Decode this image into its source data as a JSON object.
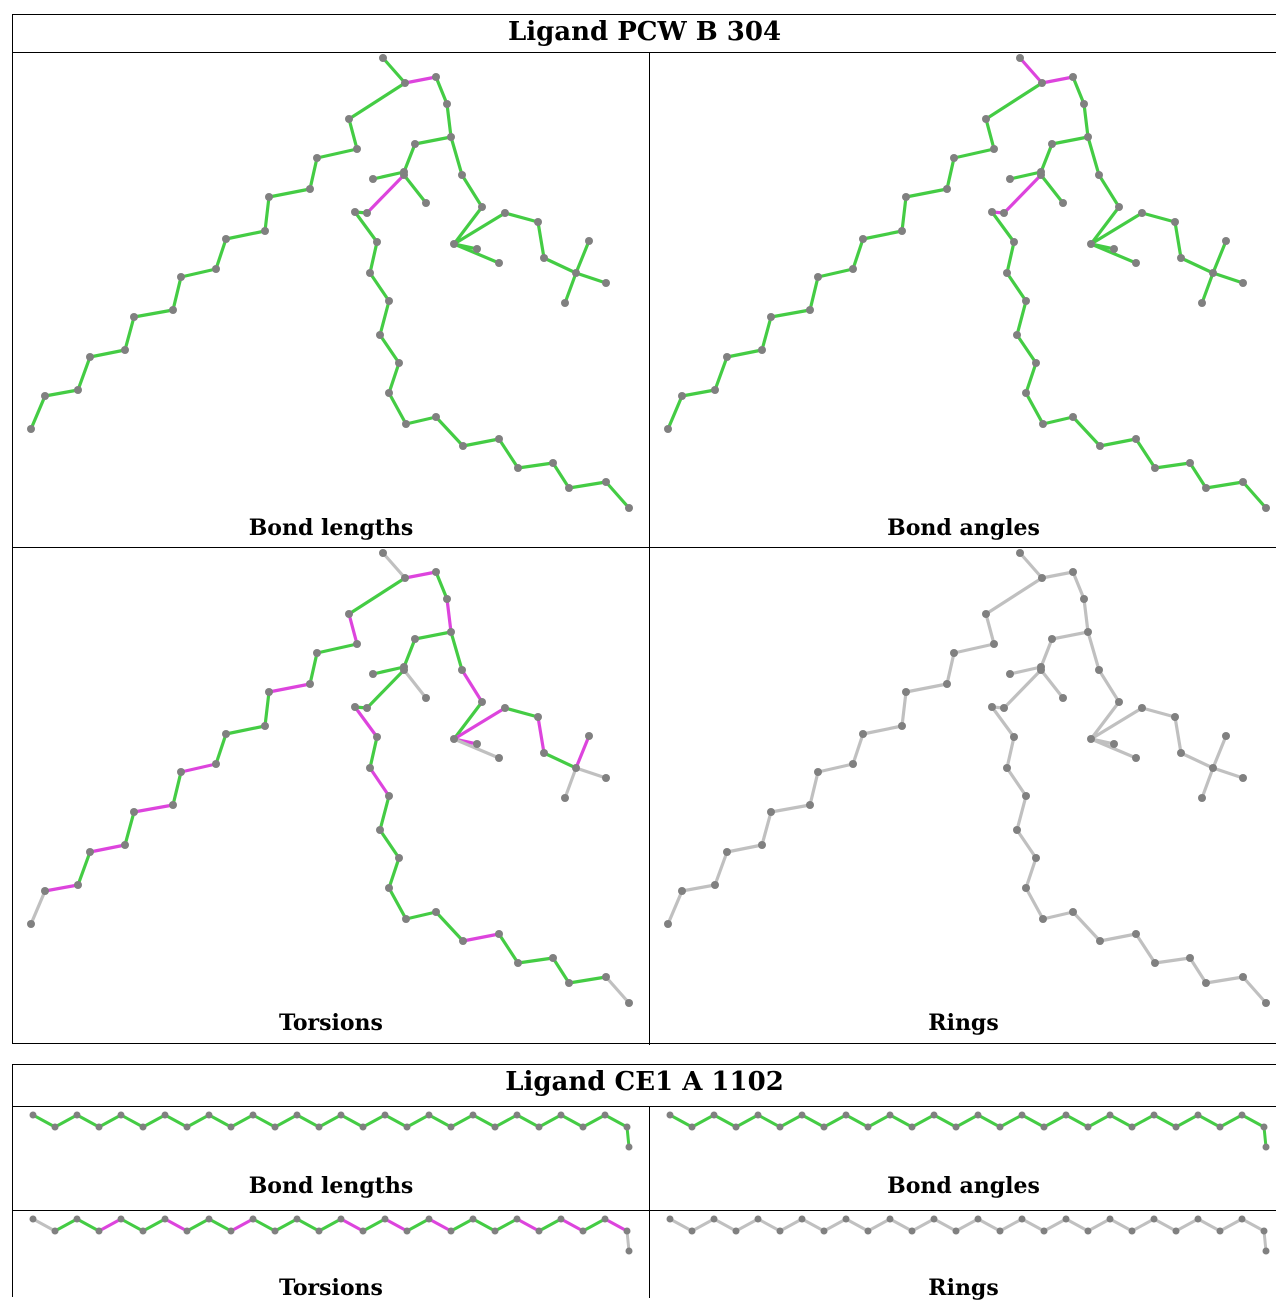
{
  "ligands": [
    {
      "title": "Ligand PCW B 304",
      "panels": [
        "Bond lengths",
        "Bond angles",
        "Torsions",
        "Rings"
      ]
    },
    {
      "title": "Ligand CE1 A 1102",
      "panels": [
        "Bond lengths",
        "Bond angles",
        "Torsions",
        "Rings"
      ]
    }
  ],
  "colors": {
    "ok_bond": "#44cc44",
    "outlier_bond": "#dd44dd",
    "neutral_bond": "#c0c0c0",
    "atom": "#808080",
    "border": "#000000"
  }
}
